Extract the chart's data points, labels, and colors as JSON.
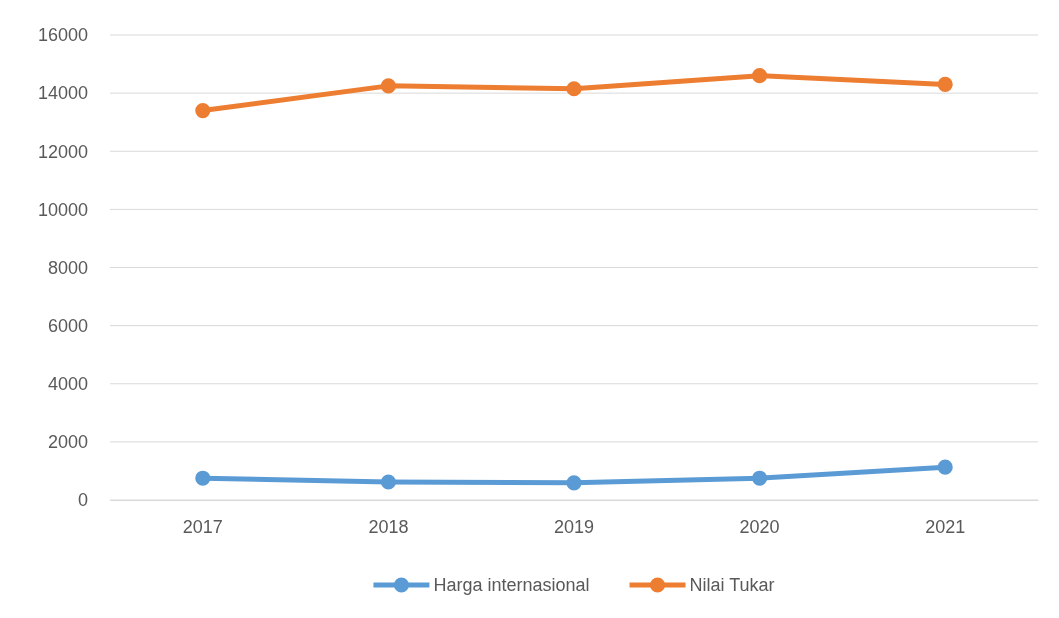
{
  "chart_data": {
    "type": "line",
    "categories": [
      "2017",
      "2018",
      "2019",
      "2020",
      "2021"
    ],
    "series": [
      {
        "name": "Harga internasional",
        "color": "#5b9bd5",
        "values": [
          750,
          620,
          590,
          750,
          1130
        ]
      },
      {
        "name": "Nilai Tukar",
        "color": "#ed7d31",
        "values": [
          13400,
          14250,
          14150,
          14600,
          14300
        ]
      }
    ],
    "ylim": [
      0,
      16000
    ],
    "yticks": [
      0,
      2000,
      4000,
      6000,
      8000,
      10000,
      12000,
      14000,
      16000
    ],
    "grid": "y",
    "legend": "bottom",
    "marker": "circle",
    "line_style": "solid"
  }
}
